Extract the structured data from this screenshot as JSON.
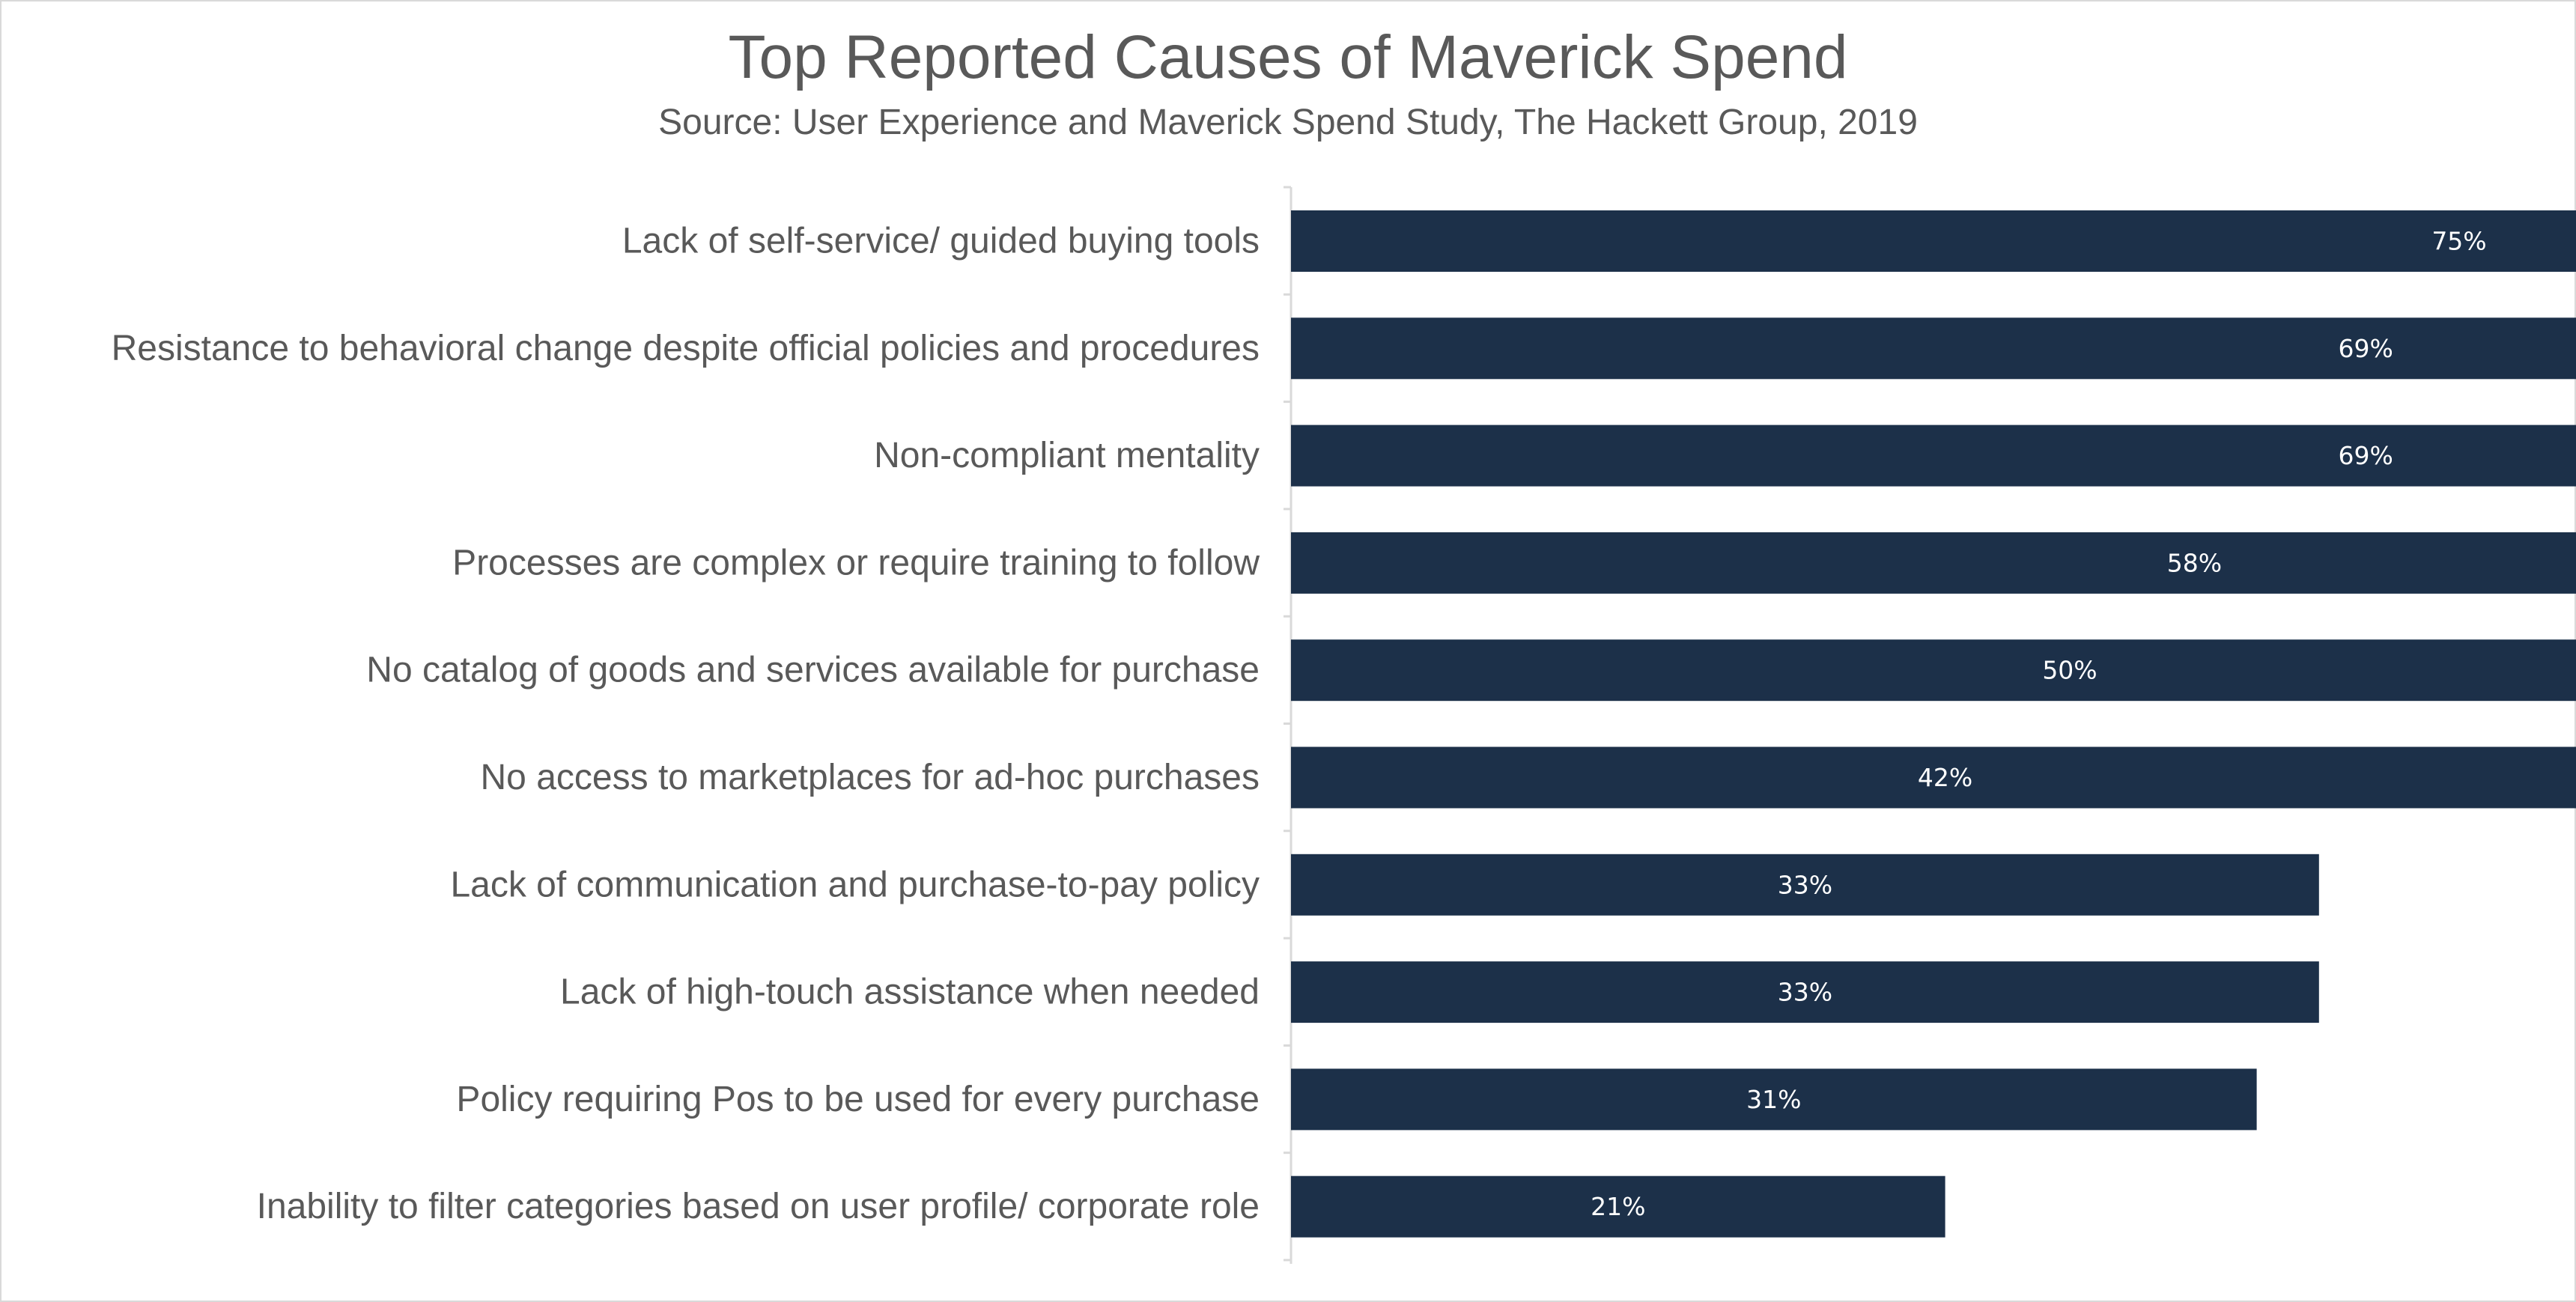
{
  "chart_data": {
    "type": "bar",
    "orientation": "horizontal",
    "title": "Top Reported Causes of Maverick Spend",
    "subtitle": "Source: User Experience and Maverick Spend Study, The Hackett Group, 2019",
    "categories": [
      "Lack of self-service/ guided buying tools",
      "Resistance to behavioral change despite official policies and procedures",
      "Non-compliant mentality",
      "Processes are complex or require training to follow",
      "No catalog of goods and services available for purchase",
      "No access to marketplaces for ad-hoc purchases",
      "Lack of communication and purchase-to-pay policy",
      "Lack of high-touch assistance when needed",
      "Policy requiring Pos to be used for every purchase",
      "Inability to filter categories based on user profile/ corporate role"
    ],
    "values": [
      75,
      69,
      69,
      58,
      50,
      42,
      33,
      33,
      31,
      21
    ],
    "data_labels": [
      "75%",
      "69%",
      "69%",
      "58%",
      "50%",
      "42%",
      "33%",
      "33%",
      "31%",
      "21%"
    ],
    "unit": "%",
    "xlim": [
      0,
      80
    ],
    "bar_color": "#1c3049",
    "data_label_color": "#ffffff",
    "text_color": "#595959",
    "grid": false,
    "legend": "none"
  }
}
